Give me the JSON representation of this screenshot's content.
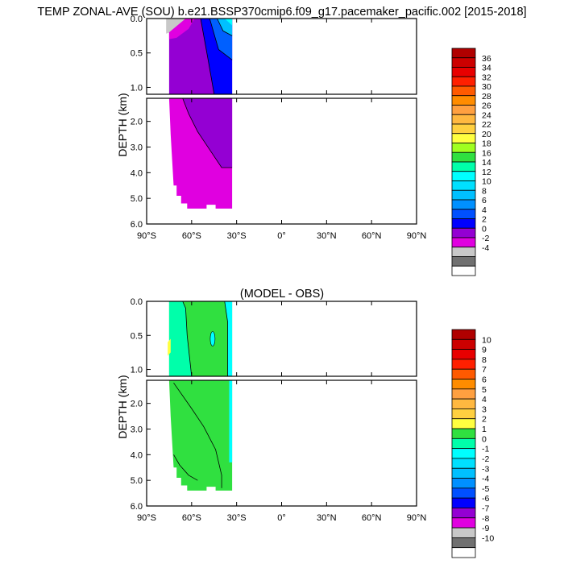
{
  "chart_data": [
    {
      "type": "heatmap",
      "title": "TEMP ZONAL-AVE (SOU) b.e21.BSSP370cmip6.f09_g17.pacemaker_pacific.002 [2015-2018]",
      "ylabel": "DEPTH (km)",
      "xticks": [
        "90°S",
        "60°S",
        "30°S",
        "0°",
        "30°N",
        "60°N",
        "90°N"
      ],
      "xlim": [
        -90,
        90
      ],
      "ylim_upper": [
        0.0,
        1.1
      ],
      "ylim_lower": [
        1.1,
        6.0
      ],
      "yticks_upper": [
        "0.0",
        "0.5",
        "1.0"
      ],
      "yticks_lower": [
        "2.0",
        "3.0",
        "4.0",
        "5.0",
        "6.0"
      ],
      "colorbar_labels": [
        "36",
        "34",
        "32",
        "30",
        "28",
        "26",
        "24",
        "22",
        "20",
        "18",
        "16",
        "14",
        "12",
        "10",
        "8",
        "6",
        "4",
        "2",
        "0",
        "-2",
        "-4"
      ],
      "colorbar_colors": [
        "#b00000",
        "#cc0000",
        "#e80000",
        "#ff2000",
        "#ff5a00",
        "#ff8c00",
        "#ffa040",
        "#ffb840",
        "#ffd040",
        "#ffff40",
        "#a0ff20",
        "#30e040",
        "#00ffaa",
        "#00ffff",
        "#00e0ff",
        "#00c0ff",
        "#0090ff",
        "#0050ff",
        "#0000ff",
        "#9400d3",
        "#e000e0",
        "#c8c8c8",
        "#707070",
        "#ffffff"
      ],
      "data_region": {
        "lat_min": -75,
        "lat_max": -33,
        "depth_max": 5.4
      },
      "palette": {
        "cold": "#e000e0",
        "cool": "#9400d3",
        "mid": "#0000ff",
        "warm": "#00ffff",
        "land": "#c8c8c8"
      }
    },
    {
      "type": "heatmap",
      "title": "(MODEL - OBS)",
      "ylabel": "DEPTH (km)",
      "xticks": [
        "90°S",
        "60°S",
        "30°S",
        "0°",
        "30°N",
        "60°N",
        "90°N"
      ],
      "xlim": [
        -90,
        90
      ],
      "ylim_upper": [
        0.0,
        1.1
      ],
      "ylim_lower": [
        1.1,
        6.0
      ],
      "yticks_upper": [
        "0.0",
        "0.5",
        "1.0"
      ],
      "yticks_lower": [
        "2.0",
        "3.0",
        "4.0",
        "5.0",
        "6.0"
      ],
      "colorbar_labels": [
        "10",
        "9",
        "8",
        "7",
        "6",
        "5",
        "4",
        "3",
        "2",
        "1",
        "0",
        "-1",
        "-2",
        "-3",
        "-4",
        "-5",
        "-6",
        "-7",
        "-8",
        "-9",
        "-10"
      ],
      "colorbar_colors": [
        "#b00000",
        "#cc0000",
        "#e80000",
        "#ff2000",
        "#ff5a00",
        "#ff8c00",
        "#ffa040",
        "#ffb840",
        "#ffd040",
        "#ffff40",
        "#30e040",
        "#00ffaa",
        "#00ffff",
        "#00e0ff",
        "#00c0ff",
        "#0090ff",
        "#0050ff",
        "#0000ff",
        "#9400d3",
        "#e000e0",
        "#c8c8c8",
        "#707070",
        "#ffffff"
      ],
      "data_region": {
        "lat_min": -75,
        "lat_max": -33,
        "depth_max": 5.4
      },
      "palette": {
        "base": "#30e040",
        "warm": "#00ffff",
        "yellow": "#ffff40"
      }
    }
  ]
}
